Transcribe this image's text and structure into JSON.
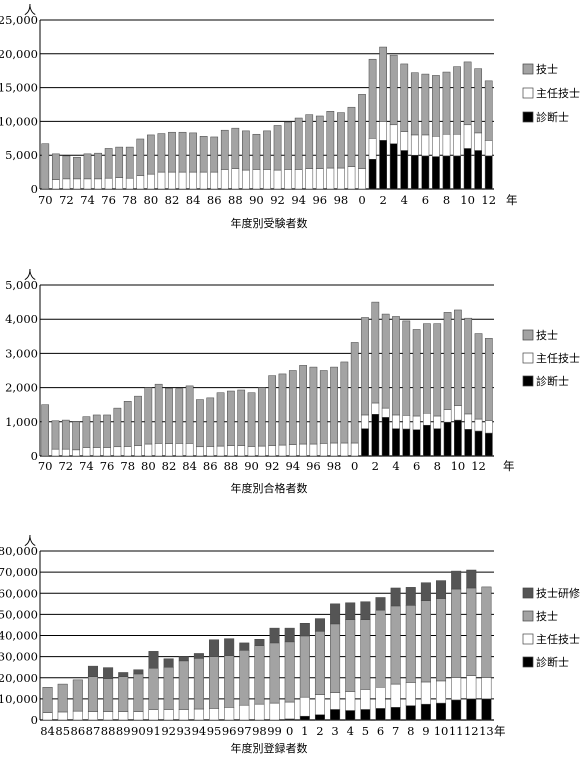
{
  "colors": {
    "shinsa": "#000000",
    "shunin": "#ffffff",
    "gishi": "#a3a3a3",
    "kenshu": "#555555",
    "grid": "#000000"
  },
  "chart_data": [
    {
      "type": "bar",
      "stacked": true,
      "title": "年度別受験者数",
      "unit": "人",
      "year_suffix": "年",
      "ylim": [
        0,
        25000
      ],
      "yticks": [
        "0",
        "5,000",
        "10,000",
        "15,000",
        "20,000",
        "25,000"
      ],
      "grid": true,
      "legend_position": "right",
      "categories": [
        "70",
        "71",
        "72",
        "73",
        "74",
        "75",
        "76",
        "77",
        "78",
        "79",
        "80",
        "81",
        "82",
        "83",
        "84",
        "85",
        "86",
        "87",
        "88",
        "89",
        "90",
        "91",
        "92",
        "93",
        "94",
        "95",
        "96",
        "97",
        "98",
        "99",
        "0",
        "1",
        "2",
        "3",
        "4",
        "5",
        "6",
        "7",
        "8",
        "9",
        "10",
        "11",
        "12"
      ],
      "xtick_labels": [
        "70",
        "72",
        "74",
        "76",
        "78",
        "80",
        "82",
        "84",
        "86",
        "88",
        "90",
        "92",
        "94",
        "96",
        "98",
        "0",
        "2",
        "4",
        "6",
        "8",
        "10",
        "12"
      ],
      "totals": [
        6700,
        5200,
        4900,
        4700,
        5200,
        5300,
        6000,
        6200,
        6200,
        7400,
        8000,
        8200,
        8400,
        8400,
        8300,
        7800,
        7700,
        8700,
        9000,
        8600,
        8100,
        8600,
        9400,
        9900,
        10500,
        11000,
        10800,
        11500,
        11300,
        12100,
        14000,
        19200,
        21000,
        19800,
        18500,
        17200,
        17000,
        16800,
        17300,
        18100,
        18800,
        17800,
        16000
      ],
      "series": [
        {
          "name": "技士",
          "values": [
            6700,
            3800,
            3400,
            3200,
            3700,
            3800,
            4400,
            4500,
            4600,
            5400,
            5800,
            5700,
            5900,
            5900,
            5800,
            5300,
            5200,
            5800,
            6000,
            5800,
            5200,
            5700,
            6600,
            7000,
            7600,
            8000,
            7800,
            8400,
            8200,
            8800,
            11000,
            11700,
            11000,
            10300,
            10000,
            9200,
            9000,
            9000,
            9200,
            10000,
            9300,
            9500,
            8800
          ]
        },
        {
          "name": "主任技士",
          "values": [
            0,
            1400,
            1500,
            1500,
            1500,
            1500,
            1600,
            1700,
            1600,
            2000,
            2200,
            2500,
            2500,
            2500,
            2500,
            2500,
            2500,
            2900,
            3000,
            2800,
            2900,
            2900,
            2800,
            2900,
            2900,
            3000,
            3000,
            3100,
            3100,
            3300,
            3000,
            3100,
            2800,
            2800,
            2800,
            3000,
            3100,
            3000,
            3200,
            3200,
            3500,
            2600,
            2300
          ]
        },
        {
          "name": "診断士",
          "values": [
            0,
            0,
            0,
            0,
            0,
            0,
            0,
            0,
            0,
            0,
            0,
            0,
            0,
            0,
            0,
            0,
            0,
            0,
            0,
            0,
            0,
            0,
            0,
            0,
            0,
            0,
            0,
            0,
            0,
            0,
            0,
            4400,
            7200,
            6700,
            5700,
            5000,
            4900,
            4800,
            4900,
            4900,
            6000,
            5700,
            4900
          ]
        }
      ]
    },
    {
      "type": "bar",
      "stacked": true,
      "title": "年度別合格者数",
      "unit": "人",
      "year_suffix": "年",
      "ylim": [
        0,
        5000
      ],
      "yticks": [
        "0",
        "1,000",
        "2,000",
        "3,000",
        "4,000",
        "5,000"
      ],
      "grid": true,
      "legend_position": "right",
      "categories": [
        "70",
        "71",
        "72",
        "73",
        "74",
        "75",
        "76",
        "77",
        "78",
        "79",
        "80",
        "81",
        "82",
        "83",
        "84",
        "85",
        "86",
        "87",
        "88",
        "89",
        "90",
        "91",
        "92",
        "93",
        "94",
        "95",
        "96",
        "97",
        "98",
        "99",
        "0",
        "1",
        "2",
        "3",
        "4",
        "5",
        "6",
        "7",
        "8",
        "9",
        "10",
        "11",
        "12",
        "13"
      ],
      "xtick_labels": [
        "70",
        "72",
        "74",
        "76",
        "78",
        "80",
        "82",
        "84",
        "86",
        "88",
        "90",
        "92",
        "94",
        "96",
        "98",
        "0",
        "2",
        "4",
        "6",
        "8",
        "10",
        "12"
      ],
      "totals": [
        1500,
        1030,
        1050,
        1000,
        1150,
        1200,
        1200,
        1400,
        1600,
        1750,
        2000,
        2100,
        1980,
        1970,
        2050,
        1650,
        1700,
        1850,
        1900,
        1930,
        1850,
        2000,
        2350,
        2400,
        2500,
        2650,
        2600,
        2500,
        2600,
        2750,
        3320,
        4050,
        4500,
        4150,
        4080,
        3950,
        3700,
        3870,
        3870,
        4200,
        4270,
        4030,
        3580,
        3440
      ],
      "series": [
        {
          "name": "技士",
          "values": [
            1500,
            830,
            850,
            820,
            900,
            950,
            950,
            1130,
            1320,
            1450,
            1650,
            1730,
            1620,
            1600,
            1680,
            1380,
            1420,
            1560,
            1600,
            1630,
            1570,
            1710,
            2050,
            2080,
            2170,
            2300,
            2250,
            2130,
            2220,
            2370,
            2940,
            2850,
            2950,
            2750,
            2880,
            2760,
            2530,
            2620,
            2700,
            2840,
            2800,
            2800,
            2500,
            2400
          ]
        },
        {
          "name": "主任技士",
          "values": [
            0,
            200,
            200,
            180,
            250,
            250,
            250,
            270,
            280,
            300,
            350,
            370,
            360,
            370,
            370,
            270,
            280,
            290,
            300,
            300,
            280,
            290,
            300,
            320,
            330,
            350,
            350,
            370,
            380,
            380,
            380,
            400,
            330,
            270,
            400,
            400,
            400,
            350,
            370,
            370,
            420,
            450,
            350,
            370
          ]
        },
        {
          "name": "診断士",
          "values": [
            0,
            0,
            0,
            0,
            0,
            0,
            0,
            0,
            0,
            0,
            0,
            0,
            0,
            0,
            0,
            0,
            0,
            0,
            0,
            0,
            0,
            0,
            0,
            0,
            0,
            0,
            0,
            0,
            0,
            0,
            0,
            800,
            1220,
            1130,
            800,
            790,
            770,
            900,
            800,
            990,
            1050,
            780,
            730,
            670
          ]
        }
      ]
    },
    {
      "type": "bar",
      "stacked": true,
      "title": "年度別登録者数",
      "unit": "人",
      "year_suffix": "年",
      "ylim": [
        0,
        80000
      ],
      "yticks": [
        "0",
        "10,000",
        "20,000",
        "30,000",
        "40,000",
        "50,000",
        "60,000",
        "70,000",
        "80,000"
      ],
      "grid": true,
      "legend_position": "right",
      "categories": [
        "84",
        "85",
        "86",
        "87",
        "88",
        "89",
        "90",
        "91",
        "92",
        "93",
        "94",
        "95",
        "96",
        "97",
        "98",
        "99",
        "0",
        "1",
        "2",
        "3",
        "4",
        "5",
        "6",
        "7",
        "8",
        "9",
        "10",
        "11",
        "12",
        "13"
      ],
      "xtick_labels": [
        "84",
        "85",
        "86",
        "87",
        "88",
        "89",
        "90",
        "91",
        "92",
        "93",
        "94",
        "95",
        "96",
        "97",
        "98",
        "99",
        "0",
        "1",
        "2",
        "3",
        "4",
        "5",
        "6",
        "7",
        "8",
        "9",
        "10",
        "11",
        "12",
        "13"
      ],
      "totals": [
        15500,
        17000,
        19000,
        25500,
        24800,
        22500,
        23800,
        32500,
        29000,
        30000,
        31500,
        38000,
        38500,
        36500,
        38200,
        43500,
        43500,
        45800,
        48000,
        55000,
        55500,
        56000,
        58000,
        62500,
        62800,
        65000,
        66000,
        70500,
        71000,
        63000
      ],
      "series": [
        {
          "name": "技士研修",
          "values": [
            0,
            0,
            0,
            5000,
            5200,
            2000,
            2000,
            8000,
            4000,
            2000,
            2300,
            8000,
            8000,
            3500,
            3000,
            7000,
            6500,
            6000,
            6000,
            9500,
            8000,
            8500,
            6000,
            8500,
            8500,
            8500,
            8500,
            8500,
            8500,
            0
          ]
        },
        {
          "name": "技士",
          "values": [
            12000,
            13200,
            14800,
            16500,
            15600,
            16500,
            17800,
            19500,
            20000,
            23000,
            24000,
            24500,
            24500,
            26000,
            27700,
            28500,
            28500,
            29000,
            30000,
            32500,
            34000,
            33000,
            36500,
            37000,
            36500,
            38500,
            39000,
            42000,
            41500,
            43000
          ]
        },
        {
          "name": "主任技士",
          "values": [
            3500,
            3800,
            4200,
            4000,
            4000,
            4000,
            4000,
            5000,
            5000,
            5000,
            5200,
            5500,
            6000,
            7000,
            7500,
            8000,
            8000,
            9000,
            9500,
            8000,
            9000,
            9500,
            10000,
            11000,
            11000,
            10500,
            10500,
            10500,
            11000,
            10000
          ]
        },
        {
          "name": "診断士",
          "values": [
            0,
            0,
            0,
            0,
            0,
            0,
            0,
            0,
            0,
            0,
            0,
            0,
            0,
            0,
            0,
            0,
            500,
            1800,
            2500,
            5000,
            4500,
            5000,
            5500,
            6000,
            6800,
            7500,
            8000,
            9500,
            10000,
            10000
          ]
        }
      ]
    }
  ]
}
